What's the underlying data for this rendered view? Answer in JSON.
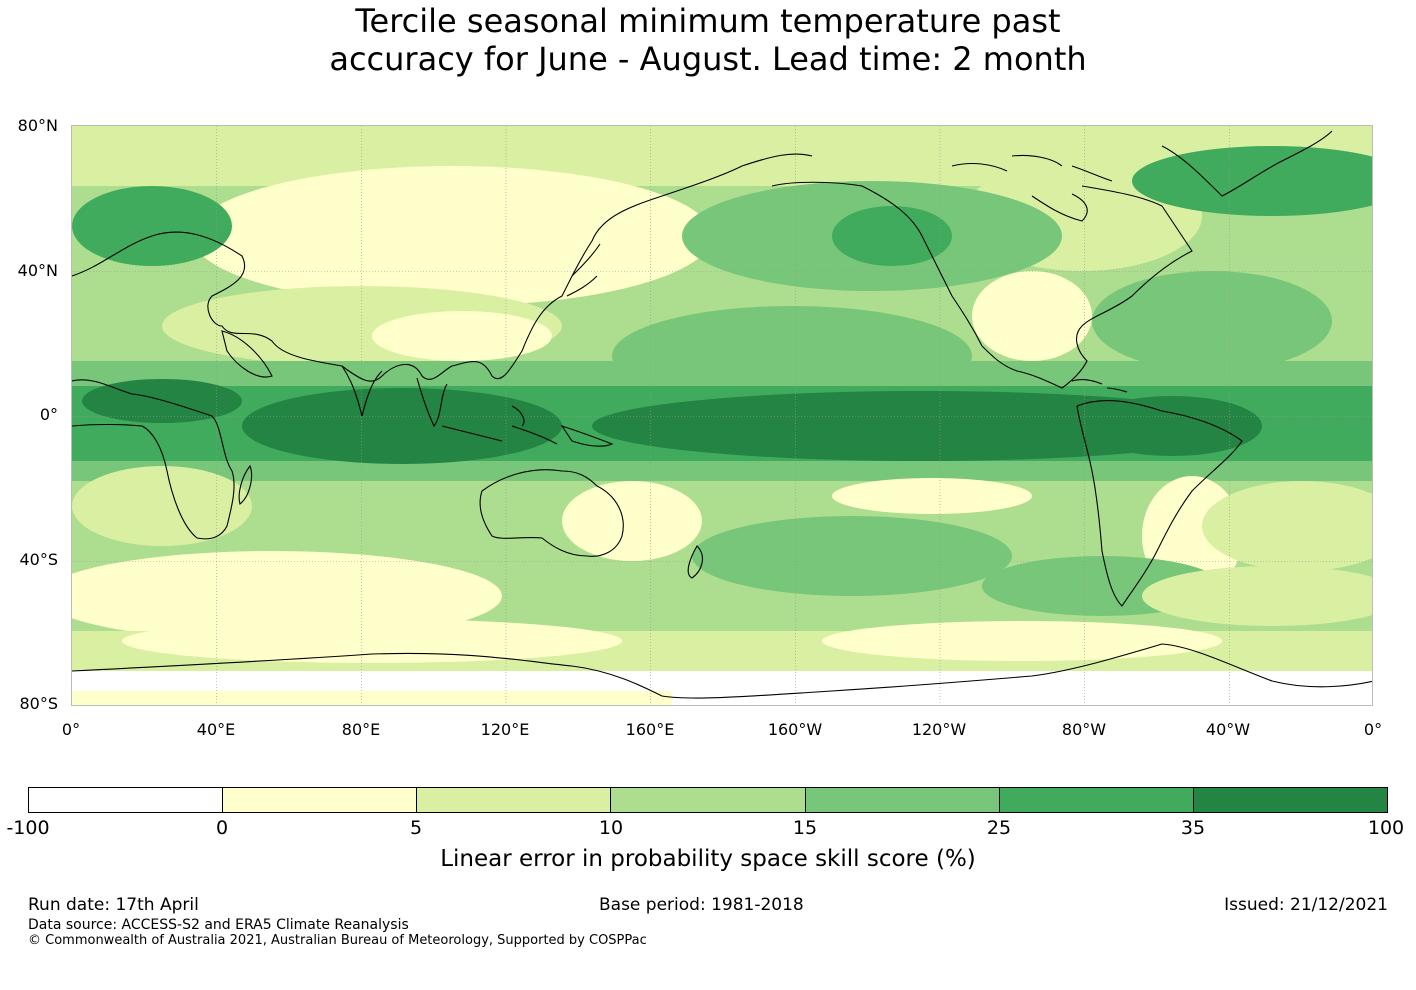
{
  "title": {
    "line1": "Tercile seasonal minimum temperature past",
    "line2": "accuracy for June - August. Lead time: 2 month"
  },
  "map": {
    "lat_labels": [
      "80°N",
      "40°N",
      "0°",
      "40°S",
      "80°S"
    ],
    "lon_labels": [
      "0°",
      "40°E",
      "80°E",
      "120°E",
      "160°E",
      "160°W",
      "120°W",
      "80°W",
      "40°W",
      "0°"
    ],
    "gridlines": true,
    "projection": "equirectangular, 0° to 360° longitude",
    "colors": {
      "land_outline": "#000000",
      "grid": "#999999"
    }
  },
  "colorbar": {
    "ticks": [
      "-100",
      "0",
      "5",
      "10",
      "15",
      "25",
      "35",
      "100"
    ],
    "colors": [
      "#ffffff",
      "#ffffcc",
      "#d9f0a3",
      "#addd8e",
      "#78c679",
      "#41ab5d",
      "#238443"
    ],
    "label": "Linear error in probability space skill score (%)"
  },
  "footer": {
    "run_date": "Run date: 17th April",
    "base_period": "Base period: 1981-2018",
    "issued": "Issued: 21/12/2021",
    "data_source": "Data source: ACCESS-S2 and ERA5 Climate Reanalysis",
    "copyright": "© Commonwealth of Australia 2021, Australian Bureau of Meteorology, Supported by COSPPac"
  }
}
